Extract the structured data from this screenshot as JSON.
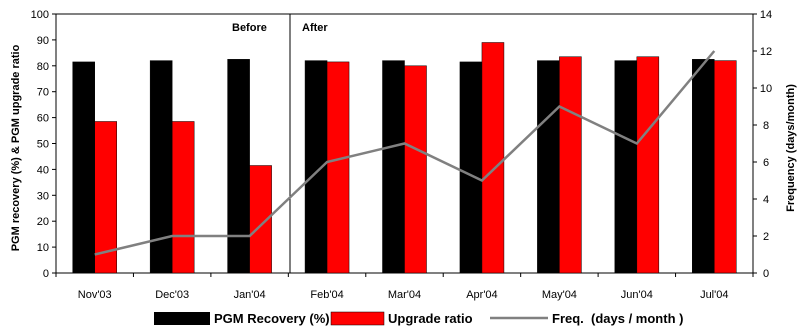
{
  "chart_data": {
    "type": "bar",
    "categories": [
      "Nov'03",
      "Dec'03",
      "Jan'04",
      "Feb'04",
      "Mar'04",
      "Apr'04",
      "May'04",
      "Jun'04",
      "Jul'04"
    ],
    "series": [
      {
        "name": "PGM Recovery (%)",
        "kind": "bar",
        "axis": "left",
        "color": "#000000",
        "values": [
          81.5,
          82,
          82.5,
          82,
          82,
          81.5,
          82,
          82,
          82.5
        ]
      },
      {
        "name": "Upgrade ratio",
        "kind": "bar",
        "axis": "left",
        "color": "#ff0000",
        "values": [
          58.5,
          58.5,
          41.5,
          81.5,
          80,
          89,
          83.5,
          83.5,
          82
        ]
      },
      {
        "name": "Freq.  (days / month )",
        "kind": "line",
        "axis": "right",
        "color": "#808080",
        "values": [
          1,
          2,
          2,
          6,
          7,
          5,
          9,
          7,
          12
        ]
      }
    ],
    "ylabel": "PGM recovery (%) & PGM upgrade ratio",
    "y2label": "Frequency (days/month)",
    "ylim": [
      0,
      100
    ],
    "y2lim": [
      0,
      14
    ],
    "yticks": [
      0,
      10,
      20,
      30,
      40,
      50,
      60,
      70,
      80,
      90,
      100
    ],
    "y2ticks": [
      0,
      2,
      4,
      6,
      8,
      10,
      12,
      14
    ],
    "annotations": [
      "Before",
      "After"
    ],
    "legend_position": "bottom"
  }
}
